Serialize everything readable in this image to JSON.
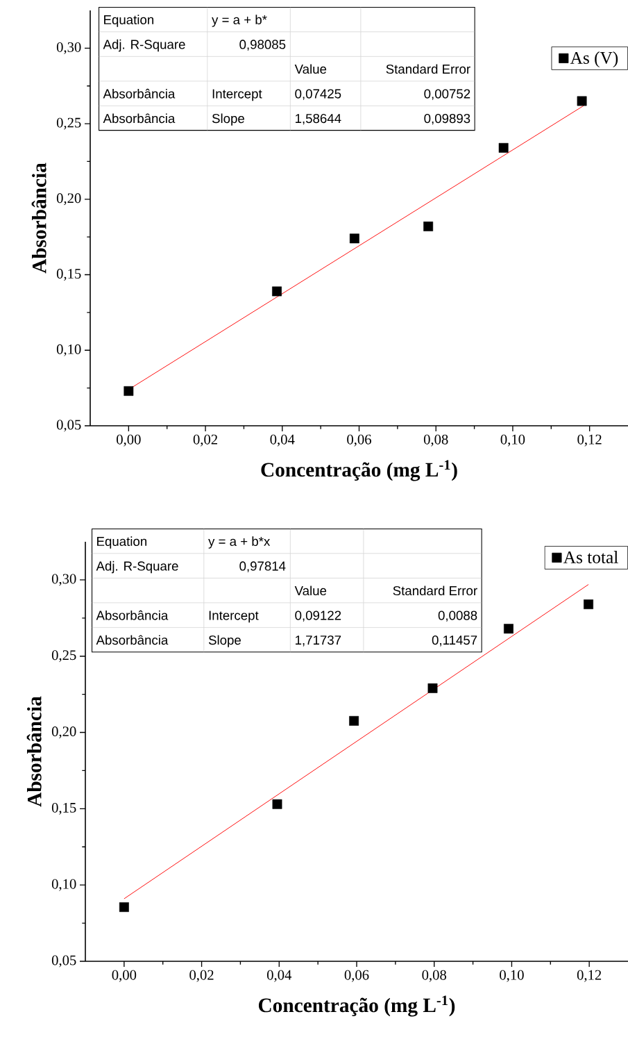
{
  "chart_data": [
    {
      "type": "scatter",
      "xlabel": "Concentração (mg L$^{-1}$)",
      "ylabel": "Absorbância",
      "xlim": [
        -0.01,
        0.13
      ],
      "ylim": [
        0.05,
        0.325
      ],
      "xticks": [
        {
          "value": 0,
          "label": "0,00"
        },
        {
          "value": 0.02,
          "label": "0,02"
        },
        {
          "value": 0.04,
          "label": "0,04"
        },
        {
          "value": 0.06,
          "label": "0,06"
        },
        {
          "value": 0.08,
          "label": "0,08"
        },
        {
          "value": 0.1,
          "label": "0,10"
        },
        {
          "value": 0.12,
          "label": "0,12"
        }
      ],
      "yticks": [
        {
          "value": 0.05,
          "label": "0,05"
        },
        {
          "value": 0.1,
          "label": "0,10"
        },
        {
          "value": 0.15,
          "label": "0,15"
        },
        {
          "value": 0.2,
          "label": "0,20"
        },
        {
          "value": 0.25,
          "label": "0,25"
        },
        {
          "value": 0.3,
          "label": "0,30"
        }
      ],
      "marker": "square",
      "legend": "top right",
      "series": [
        {
          "name": "As (V)",
          "color": "#000000",
          "x": [
            0,
            0.0386,
            0.0588,
            0.078,
            0.0976,
            0.118
          ],
          "values": [
            0.073,
            0.139,
            0.174,
            0.182,
            0.234,
            0.265
          ]
        },
        {
          "type": "line",
          "marker": "none",
          "color": "#ff0000",
          "x": [
            0,
            0.1185
          ],
          "values": [
            0.074,
            0.262
          ]
        }
      ],
      "annotations": [
        "Equation",
        "y = a + b*",
        "Adj. R-Square",
        "0,98085",
        "Value",
        "Standard Error",
        "Absorbância",
        "Intercept",
        "0,07425",
        "0,00752",
        "Absorbância",
        "Slope",
        "1,58644",
        "0,09893"
      ]
    },
    {
      "type": "scatter",
      "xlabel": "Concentração (mg L$^{-1}$)",
      "ylabel": "Absorbância",
      "xlim": [
        -0.01,
        0.13
      ],
      "ylim": [
        0.05,
        0.325
      ],
      "xticks": [
        {
          "value": 0,
          "label": "0,00"
        },
        {
          "value": 0.02,
          "label": "0,02"
        },
        {
          "value": 0.04,
          "label": "0,04"
        },
        {
          "value": 0.06,
          "label": "0,06"
        },
        {
          "value": 0.08,
          "label": "0,08"
        },
        {
          "value": 0.1,
          "label": "0,10"
        },
        {
          "value": 0.12,
          "label": "0,12"
        }
      ],
      "yticks": [
        {
          "value": 0.05,
          "label": "0,05"
        },
        {
          "value": 0.1,
          "label": "0,10"
        },
        {
          "value": 0.15,
          "label": "0,15"
        },
        {
          "value": 0.2,
          "label": "0,20"
        },
        {
          "value": 0.25,
          "label": "0,25"
        },
        {
          "value": 0.3,
          "label": "0,30"
        }
      ],
      "marker": "square",
      "legend": "top right",
      "series": [
        {
          "name": "As total",
          "color": "#000000",
          "x": [
            0,
            0.0395,
            0.0593,
            0.0796,
            0.0992,
            0.1198
          ],
          "values": [
            0.0855,
            0.153,
            0.2076,
            0.229,
            0.268,
            0.284
          ]
        },
        {
          "type": "line",
          "marker": "none",
          "color": "#ff0000",
          "x": [
            0,
            0.1198
          ],
          "values": [
            0.091,
            0.297
          ]
        }
      ],
      "annotations": [
        "Equation",
        "y = a + b*x",
        "Adj. R-Square",
        "0,97814",
        "Value",
        "Standard Error",
        "Absorbância",
        "Intercept",
        "0,09122",
        "0,0088",
        "Absorbância",
        "Slope",
        "1,71737",
        "0,11457"
      ]
    }
  ]
}
